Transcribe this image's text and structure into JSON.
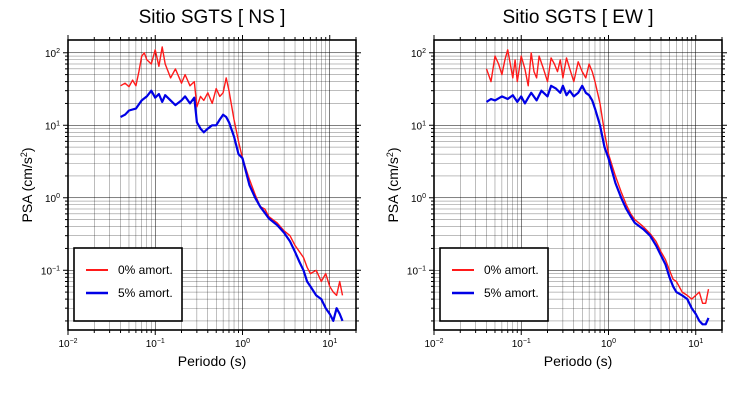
{
  "colors": {
    "undamped": "#ff1a1a",
    "damped": "#0000e6"
  },
  "chart_data": [
    {
      "type": "line",
      "title": "Sitio SGTS [ NS ]",
      "xlabel": "Periodo (s)",
      "ylabel": "PSA (cm/s",
      "ylabel_sup": "2",
      "ylabel_close": ")",
      "xscale": "log",
      "yscale": "log",
      "xlim": [
        0.01,
        20
      ],
      "ylim": [
        0.015,
        150
      ],
      "grid": true,
      "legend_position": "bottom-left",
      "xticks": [
        {
          "base": "10",
          "exp": "−2"
        },
        {
          "base": "10",
          "exp": "−1"
        },
        {
          "base": "10",
          "exp": "0"
        },
        {
          "base": "10",
          "exp": "1"
        }
      ],
      "yticks": [
        {
          "base": "10",
          "exp": "−1"
        },
        {
          "base": "10",
          "exp": "0"
        },
        {
          "base": "10",
          "exp": "1"
        },
        {
          "base": "10",
          "exp": "2"
        }
      ],
      "series": [
        {
          "name": "0% amort.",
          "color": "#ff1a1a",
          "x": [
            0.04,
            0.045,
            0.05,
            0.055,
            0.06,
            0.065,
            0.07,
            0.075,
            0.08,
            0.09,
            0.1,
            0.11,
            0.12,
            0.13,
            0.15,
            0.17,
            0.2,
            0.22,
            0.25,
            0.28,
            0.3,
            0.33,
            0.36,
            0.4,
            0.45,
            0.5,
            0.55,
            0.6,
            0.65,
            0.7,
            0.8,
            0.9,
            1.0,
            1.2,
            1.4,
            1.6,
            1.8,
            2.0,
            2.5,
            3.0,
            3.5,
            4.0,
            4.5,
            5.0,
            5.5,
            6.0,
            7.0,
            8.0,
            9.0,
            10.0,
            11.0,
            12.0,
            13.0,
            14.0
          ],
          "y": [
            35,
            38,
            34,
            42,
            35,
            55,
            90,
            100,
            80,
            70,
            110,
            65,
            120,
            70,
            45,
            60,
            38,
            50,
            35,
            40,
            18,
            25,
            22,
            28,
            20,
            32,
            25,
            28,
            45,
            30,
            12,
            6,
            3.5,
            1.8,
            1.1,
            0.75,
            0.7,
            0.55,
            0.45,
            0.35,
            0.3,
            0.22,
            0.18,
            0.15,
            0.11,
            0.09,
            0.1,
            0.07,
            0.09,
            0.06,
            0.05,
            0.045,
            0.07,
            0.045
          ]
        },
        {
          "name": "5% amort.",
          "color": "#0000e6",
          "x": [
            0.04,
            0.045,
            0.05,
            0.06,
            0.07,
            0.08,
            0.09,
            0.1,
            0.11,
            0.12,
            0.13,
            0.15,
            0.17,
            0.2,
            0.22,
            0.25,
            0.28,
            0.3,
            0.33,
            0.36,
            0.4,
            0.45,
            0.5,
            0.55,
            0.6,
            0.65,
            0.7,
            0.8,
            0.9,
            1.0,
            1.2,
            1.4,
            1.6,
            1.8,
            2.0,
            2.5,
            3.0,
            3.5,
            4.0,
            4.5,
            5.0,
            5.5,
            6.0,
            7.0,
            8.0,
            9.0,
            10.0,
            11.0,
            12.0,
            13.0,
            14.0
          ],
          "y": [
            13,
            14,
            16,
            17,
            22,
            25,
            30,
            24,
            27,
            21,
            26,
            22,
            19,
            22,
            25,
            20,
            24,
            11,
            9,
            8,
            9,
            10,
            10,
            12,
            14,
            13,
            11,
            7,
            4,
            3.5,
            1.5,
            1.0,
            0.75,
            0.62,
            0.52,
            0.42,
            0.33,
            0.25,
            0.18,
            0.13,
            0.1,
            0.07,
            0.06,
            0.045,
            0.04,
            0.03,
            0.025,
            0.02,
            0.03,
            0.025,
            0.02
          ]
        }
      ]
    },
    {
      "type": "line",
      "title": "Sitio SGTS [ EW ]",
      "xlabel": "Periodo (s)",
      "ylabel": "PSA (cm/s",
      "ylabel_sup": "2",
      "ylabel_close": ")",
      "xscale": "log",
      "yscale": "log",
      "xlim": [
        0.01,
        20
      ],
      "ylim": [
        0.015,
        150
      ],
      "grid": true,
      "legend_position": "bottom-left",
      "xticks": [
        {
          "base": "10",
          "exp": "−2"
        },
        {
          "base": "10",
          "exp": "−1"
        },
        {
          "base": "10",
          "exp": "0"
        },
        {
          "base": "10",
          "exp": "1"
        }
      ],
      "yticks": [
        {
          "base": "10",
          "exp": "−1"
        },
        {
          "base": "10",
          "exp": "0"
        },
        {
          "base": "10",
          "exp": "1"
        },
        {
          "base": "10",
          "exp": "2"
        }
      ],
      "series": [
        {
          "name": "0% amort.",
          "color": "#ff1a1a",
          "x": [
            0.04,
            0.045,
            0.05,
            0.055,
            0.06,
            0.065,
            0.07,
            0.075,
            0.08,
            0.085,
            0.09,
            0.1,
            0.11,
            0.12,
            0.13,
            0.14,
            0.15,
            0.16,
            0.18,
            0.2,
            0.22,
            0.24,
            0.26,
            0.28,
            0.3,
            0.33,
            0.36,
            0.4,
            0.45,
            0.5,
            0.55,
            0.6,
            0.65,
            0.7,
            0.8,
            0.9,
            1.0,
            1.2,
            1.4,
            1.6,
            1.8,
            2.0,
            2.5,
            3.0,
            3.5,
            4.0,
            4.5,
            5.0,
            5.5,
            6.0,
            7.0,
            8.0,
            9.0,
            10.0,
            11.0,
            12.0,
            13.0,
            14.0
          ],
          "y": [
            60,
            40,
            90,
            70,
            50,
            80,
            110,
            70,
            45,
            80,
            40,
            90,
            60,
            35,
            100,
            55,
            45,
            90,
            60,
            40,
            85,
            70,
            55,
            80,
            45,
            85,
            60,
            40,
            75,
            55,
            45,
            70,
            55,
            40,
            20,
            8,
            4,
            2,
            1.2,
            0.8,
            0.6,
            0.5,
            0.4,
            0.32,
            0.25,
            0.18,
            0.14,
            0.1,
            0.075,
            0.07,
            0.05,
            0.045,
            0.04,
            0.045,
            0.05,
            0.035,
            0.035,
            0.055
          ]
        },
        {
          "name": "5% amort.",
          "color": "#0000e6",
          "x": [
            0.04,
            0.045,
            0.05,
            0.06,
            0.07,
            0.08,
            0.09,
            0.1,
            0.11,
            0.12,
            0.13,
            0.15,
            0.17,
            0.2,
            0.22,
            0.25,
            0.28,
            0.3,
            0.33,
            0.36,
            0.4,
            0.45,
            0.5,
            0.55,
            0.6,
            0.65,
            0.7,
            0.8,
            0.9,
            1.0,
            1.2,
            1.4,
            1.6,
            1.8,
            2.0,
            2.5,
            3.0,
            3.5,
            4.0,
            4.5,
            5.0,
            5.5,
            6.0,
            7.0,
            8.0,
            9.0,
            10.0,
            11.0,
            12.0,
            13.0,
            14.0
          ],
          "y": [
            21,
            23,
            22,
            25,
            23,
            26,
            21,
            25,
            20,
            24,
            28,
            22,
            30,
            25,
            35,
            32,
            28,
            35,
            26,
            30,
            25,
            28,
            35,
            28,
            26,
            22,
            17,
            10,
            5,
            3.5,
            1.6,
            1.0,
            0.7,
            0.55,
            0.45,
            0.37,
            0.3,
            0.22,
            0.16,
            0.12,
            0.08,
            0.06,
            0.05,
            0.045,
            0.04,
            0.03,
            0.025,
            0.02,
            0.018,
            0.018,
            0.022
          ]
        }
      ]
    }
  ]
}
